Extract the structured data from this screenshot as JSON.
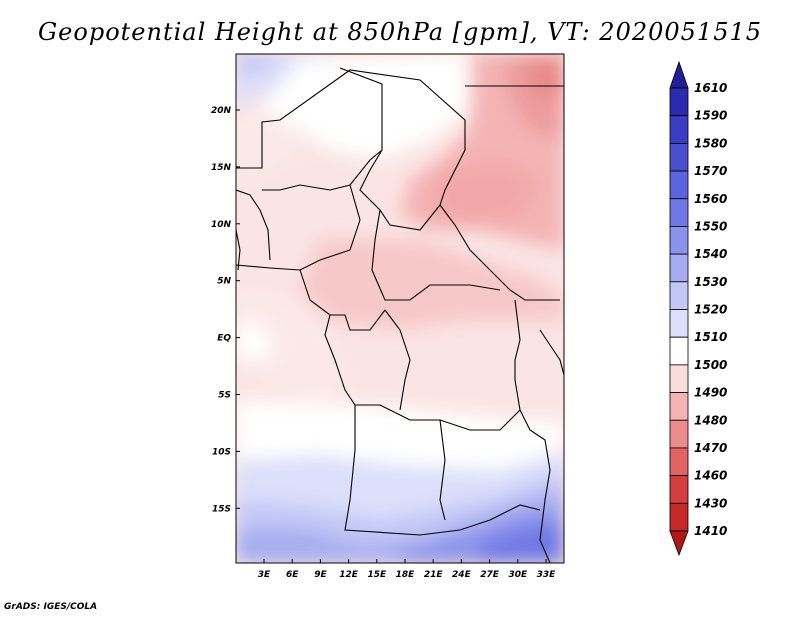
{
  "title": "Geopotential Height at 850hPa [gpm], VT: 2020051515",
  "credit": "GrADS: IGES/COLA",
  "map": {
    "lat_ticks": [
      "20N",
      "15N",
      "10N",
      "5N",
      "EQ",
      "5S",
      "10S",
      "15S"
    ],
    "lon_ticks": [
      "3E",
      "6E",
      "9E",
      "12E",
      "15E",
      "18E",
      "21E",
      "24E",
      "27E",
      "30E",
      "33E"
    ]
  },
  "colorbar": {
    "labels": [
      "1610",
      "1590",
      "1580",
      "1570",
      "1560",
      "1550",
      "1540",
      "1530",
      "1520",
      "1510",
      "1500",
      "1490",
      "1480",
      "1470",
      "1460",
      "1430",
      "1410"
    ],
    "colors": [
      "#211e9e",
      "#2c2bb0",
      "#3a3cc2",
      "#4a4fd0",
      "#5c63dc",
      "#7078e4",
      "#8a92ea",
      "#a5acf0",
      "#c2c7f6",
      "#dcdffa",
      "#ffffff",
      "#fadcdc",
      "#f4b4b4",
      "#ec8c8c",
      "#e06464",
      "#d43e3e",
      "#c42828",
      "#b01818"
    ]
  }
}
